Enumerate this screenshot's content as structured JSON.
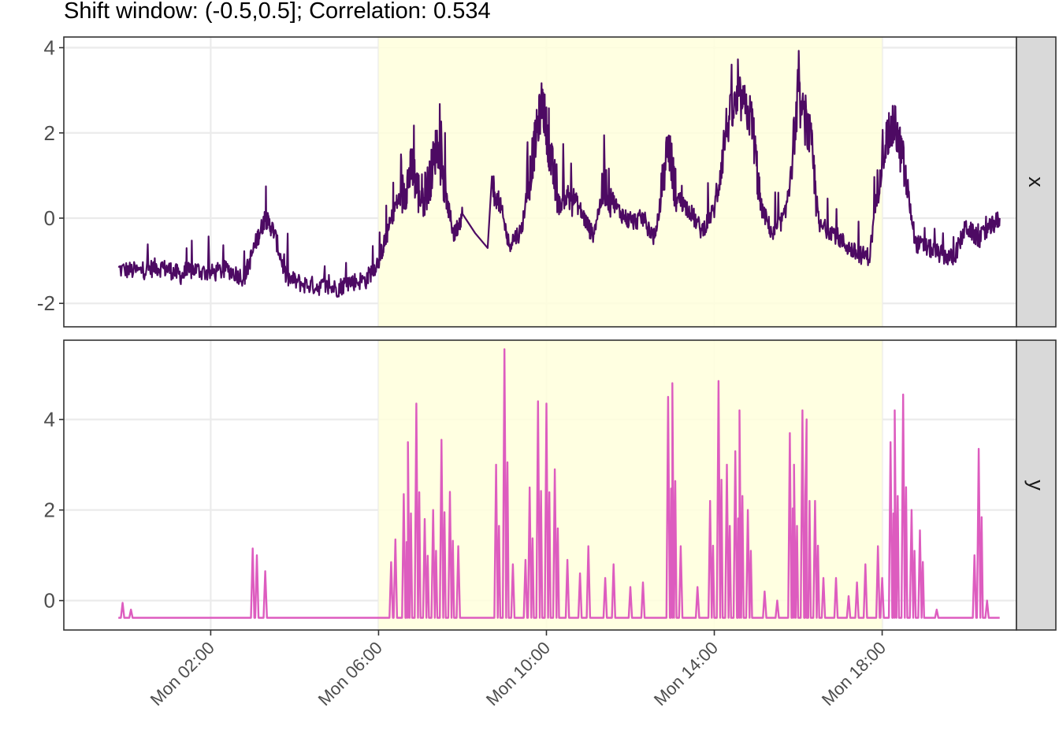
{
  "chart_data": {
    "type": "line",
    "title": "Shift window: (-0.5,0.5]; Correlation: 0.534",
    "xlabel": "",
    "ylabel": "",
    "x_axis": {
      "type": "time",
      "range_hours": [
        -1.5,
        21.2
      ],
      "ticks": [
        {
          "hour": 2,
          "label": "Mon 02:00"
        },
        {
          "hour": 6,
          "label": "Mon 06:00"
        },
        {
          "hour": 10,
          "label": "Mon 10:00"
        },
        {
          "hour": 14,
          "label": "Mon 14:00"
        },
        {
          "hour": 18,
          "label": "Mon 18:00"
        }
      ]
    },
    "highlight_window_hours": [
      6,
      18
    ],
    "highlight_color": "#ffffdc",
    "grid": true,
    "panels": [
      {
        "strip_label": "x",
        "color": "#4d0a63",
        "ylim": [
          -2.55,
          4.25
        ],
        "y_ticks": [
          {
            "value": -2,
            "label": "-2"
          },
          {
            "value": 0,
            "label": "0"
          },
          {
            "value": 2,
            "label": "2"
          },
          {
            "value": 4,
            "label": "4"
          }
        ],
        "series": [
          {
            "points": [
              [
                -0.2,
                -1.2
              ],
              [
                0.3,
                -1.25
              ],
              [
                0.7,
                -1.15
              ],
              [
                1.0,
                -1.2
              ],
              [
                1.3,
                -1.35
              ],
              [
                1.6,
                -1.2
              ],
              [
                2.0,
                -1.3
              ],
              [
                2.4,
                -1.2
              ],
              [
                2.8,
                -1.4
              ],
              [
                3.1,
                -0.5
              ],
              [
                3.3,
                0.0
              ],
              [
                3.5,
                -0.3
              ],
              [
                3.8,
                -1.4
              ],
              [
                4.2,
                -1.55
              ],
              [
                4.6,
                -1.6
              ],
              [
                5.0,
                -1.65
              ],
              [
                5.3,
                -1.5
              ],
              [
                5.7,
                -1.45
              ],
              [
                6.0,
                -1.0
              ],
              [
                6.2,
                -0.4
              ],
              [
                6.4,
                0.3
              ],
              [
                6.6,
                0.6
              ],
              [
                6.8,
                1.2
              ],
              [
                7.0,
                0.4
              ],
              [
                7.2,
                0.8
              ],
              [
                7.4,
                1.8
              ],
              [
                7.6,
                0.5
              ],
              [
                7.8,
                -0.4
              ],
              [
                8.0,
                0.1
              ],
              [
                8.3,
                -0.35
              ],
              [
                8.6,
                -0.7
              ],
              [
                8.7,
                0.6
              ],
              [
                8.9,
                0.3
              ],
              [
                9.1,
                -0.6
              ],
              [
                9.4,
                -0.3
              ],
              [
                9.7,
                1.6
              ],
              [
                9.9,
                2.8
              ],
              [
                10.1,
                1.4
              ],
              [
                10.3,
                0.3
              ],
              [
                10.6,
                0.6
              ],
              [
                10.9,
                0.0
              ],
              [
                11.1,
                -0.4
              ],
              [
                11.4,
                0.8
              ],
              [
                11.7,
                0.2
              ],
              [
                12.0,
                -0.1
              ],
              [
                12.3,
                0.0
              ],
              [
                12.6,
                -0.5
              ],
              [
                12.9,
                1.8
              ],
              [
                13.1,
                0.5
              ],
              [
                13.4,
                0.2
              ],
              [
                13.7,
                -0.3
              ],
              [
                14.0,
                0.2
              ],
              [
                14.3,
                2.2
              ],
              [
                14.6,
                2.8
              ],
              [
                14.9,
                2.3
              ],
              [
                15.1,
                0.3
              ],
              [
                15.4,
                -0.4
              ],
              [
                15.7,
                0.1
              ],
              [
                16.0,
                2.8
              ],
              [
                16.3,
                1.8
              ],
              [
                16.5,
                -0.2
              ],
              [
                16.8,
                -0.3
              ],
              [
                17.1,
                -0.6
              ],
              [
                17.4,
                -0.85
              ],
              [
                17.7,
                -0.9
              ],
              [
                18.0,
                1.6
              ],
              [
                18.3,
                2.2
              ],
              [
                18.5,
                1.3
              ],
              [
                18.8,
                -0.6
              ],
              [
                19.1,
                -0.7
              ],
              [
                19.4,
                -0.85
              ],
              [
                19.7,
                -0.95
              ],
              [
                20.0,
                -0.2
              ],
              [
                20.3,
                -0.5
              ],
              [
                20.6,
                -0.2
              ],
              [
                20.8,
                0.0
              ]
            ]
          }
        ]
      },
      {
        "strip_label": "y",
        "color": "#dd5cbf",
        "ylim": [
          -0.65,
          5.75
        ],
        "y_ticks": [
          {
            "value": 0,
            "label": "0"
          },
          {
            "value": 2,
            "label": "2"
          },
          {
            "value": 4,
            "label": "4"
          }
        ],
        "series": [
          {
            "baseline": -0.38,
            "spikes": [
              [
                -0.1,
                -0.05
              ],
              [
                0.1,
                -0.2
              ],
              [
                3.0,
                1.15
              ],
              [
                3.1,
                1.0
              ],
              [
                3.3,
                0.65
              ],
              [
                6.3,
                0.85
              ],
              [
                6.4,
                1.35
              ],
              [
                6.6,
                2.35
              ],
              [
                6.7,
                3.5
              ],
              [
                6.9,
                4.35
              ],
              [
                7.1,
                1.8
              ],
              [
                7.3,
                2.0
              ],
              [
                7.5,
                3.55
              ],
              [
                7.7,
                2.4
              ],
              [
                7.9,
                1.2
              ],
              [
                8.8,
                3.0
              ],
              [
                9.0,
                5.55
              ],
              [
                9.2,
                0.8
              ],
              [
                9.5,
                0.9
              ],
              [
                9.6,
                2.5
              ],
              [
                9.8,
                4.4
              ],
              [
                10.0,
                4.35
              ],
              [
                10.2,
                2.9
              ],
              [
                10.5,
                0.9
              ],
              [
                10.8,
                0.6
              ],
              [
                11.0,
                1.2
              ],
              [
                11.4,
                0.5
              ],
              [
                11.6,
                0.8
              ],
              [
                12.0,
                0.3
              ],
              [
                12.3,
                0.4
              ],
              [
                12.9,
                4.5
              ],
              [
                13.0,
                4.8
              ],
              [
                13.2,
                1.2
              ],
              [
                13.6,
                0.3
              ],
              [
                13.9,
                2.2
              ],
              [
                14.1,
                4.85
              ],
              [
                14.3,
                3.0
              ],
              [
                14.5,
                3.3
              ],
              [
                14.6,
                4.2
              ],
              [
                14.8,
                2.0
              ],
              [
                15.2,
                0.2
              ],
              [
                15.5,
                0.0
              ],
              [
                15.8,
                3.7
              ],
              [
                15.9,
                3.0
              ],
              [
                16.1,
                4.2
              ],
              [
                16.2,
                4.0
              ],
              [
                16.4,
                2.2
              ],
              [
                16.6,
                0.5
              ],
              [
                16.9,
                0.5
              ],
              [
                17.2,
                0.1
              ],
              [
                17.4,
                0.4
              ],
              [
                17.6,
                0.8
              ],
              [
                17.9,
                1.2
              ],
              [
                18.0,
                0.5
              ],
              [
                18.2,
                3.5
              ],
              [
                18.3,
                4.2
              ],
              [
                18.5,
                4.55
              ],
              [
                18.7,
                2.0
              ],
              [
                18.9,
                1.55
              ],
              [
                19.3,
                -0.2
              ],
              [
                20.2,
                1.0
              ],
              [
                20.3,
                3.35
              ],
              [
                20.5,
                0.0
              ]
            ]
          }
        ]
      }
    ]
  }
}
